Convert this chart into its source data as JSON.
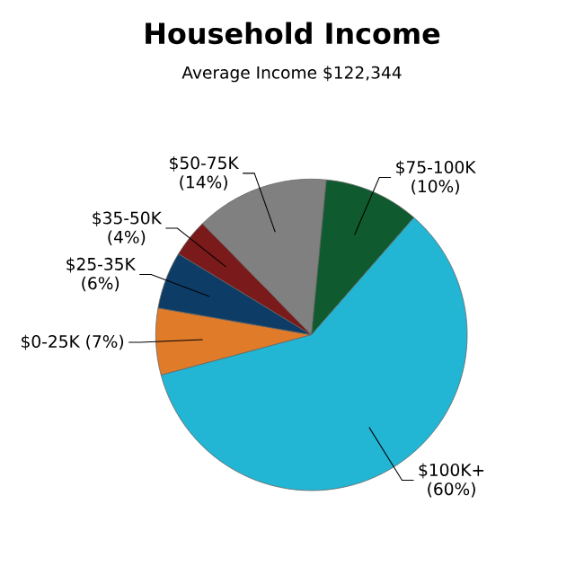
{
  "chart_data": {
    "type": "pie",
    "title": "Household Income",
    "subtitle": "Average Income  $122,344",
    "categories": [
      "$0-25K",
      "$25-35K",
      "$35-50K",
      "$50-75K",
      "$75-100K",
      "$100K+"
    ],
    "values": [
      7,
      6,
      4,
      14,
      10,
      60
    ],
    "value_labels": [
      "(7%)",
      "(6%)",
      "(4%)",
      "(14%)",
      "(10%)",
      "(60%)"
    ],
    "colors": [
      "#e07b2a",
      "#0d3d66",
      "#7a1a1a",
      "#808080",
      "#0f5a2e",
      "#22b5d4"
    ]
  }
}
